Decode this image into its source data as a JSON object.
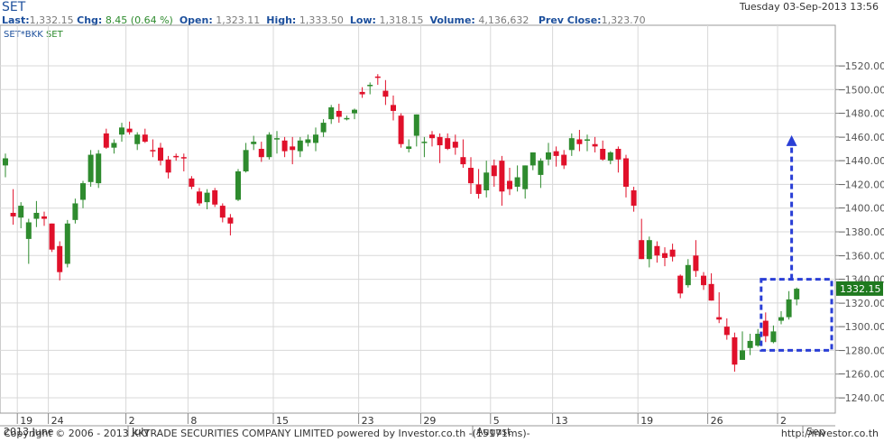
{
  "header": {
    "title": "SET",
    "datetime": "Tuesday 03-Sep-2013 13:56",
    "last_label": "Last:",
    "last": "1,332.15",
    "chg_label": "Chg:",
    "chg": "8.45 (0.64 %)",
    "open_label": "Open:",
    "open": "1,323.11",
    "high_label": "High:",
    "high": "1,333.50",
    "low_label": "Low:",
    "low": "1,318.15",
    "volume_label": "Volume:",
    "volume": "4,136,632",
    "prev_label": "Prev Close:",
    "prev": "1,323.70",
    "symbol_a": "SET*BKK",
    "symbol_b": "SET"
  },
  "footer": {
    "copyright": "Copyright © 2006 - 2013 KKTRADE SECURITIES COMPANY LIMITED powered by Investor.co.th -(15171ms)-",
    "url": "http://investor.co.th"
  },
  "colors": {
    "up": "#2e8b2e",
    "down": "#e0102a",
    "grid": "#d8d8d8",
    "annotation": "#2a3fd6",
    "label_bg": "#1f7a1f"
  },
  "chart_data": {
    "type": "candlestick",
    "y_ticks": [
      "1520.00",
      "1500.00",
      "1480.00",
      "1460.00",
      "1440.00",
      "1420.00",
      "1400.00",
      "1380.00",
      "1360.00",
      "1340.00",
      "1320.00",
      "1300.00",
      "1280.00",
      "1260.00",
      "1240.00"
    ],
    "ylim": [
      1230,
      1545
    ],
    "last_price_label": "1332.15",
    "x_day_labels": [
      "19",
      "24",
      "2",
      "8",
      "15",
      "23",
      "29",
      "5",
      "13",
      "19",
      "26",
      "2"
    ],
    "x_month_labels": [
      "2013 June",
      "July",
      "August",
      "Sep"
    ],
    "candles": [
      {
        "date": "2013-06-18",
        "open": 1436,
        "high": 1446,
        "low": 1426,
        "close": 1442
      },
      {
        "date": "2013-06-19",
        "open": 1396,
        "high": 1416,
        "low": 1386,
        "close": 1393
      },
      {
        "date": "2013-06-20",
        "open": 1392,
        "high": 1405,
        "low": 1383,
        "close": 1402
      },
      {
        "date": "2013-06-21",
        "open": 1374,
        "high": 1391,
        "low": 1353,
        "close": 1388
      },
      {
        "date": "2013-06-24",
        "open": 1391,
        "high": 1406,
        "low": 1384,
        "close": 1396
      },
      {
        "date": "2013-06-25",
        "open": 1393,
        "high": 1397,
        "low": 1385,
        "close": 1391
      },
      {
        "date": "2013-06-26",
        "open": 1387,
        "high": 1387,
        "low": 1363,
        "close": 1365
      },
      {
        "date": "2013-06-27",
        "open": 1368,
        "high": 1372,
        "low": 1339,
        "close": 1346
      },
      {
        "date": "2013-06-28",
        "open": 1353,
        "high": 1390,
        "low": 1350,
        "close": 1387
      },
      {
        "date": "2013-07-01",
        "open": 1390,
        "high": 1408,
        "low": 1387,
        "close": 1404
      },
      {
        "date": "2013-07-02",
        "open": 1407,
        "high": 1423,
        "low": 1400,
        "close": 1421
      },
      {
        "date": "2013-07-03",
        "open": 1422,
        "high": 1449,
        "low": 1418,
        "close": 1445
      },
      {
        "date": "2013-07-04",
        "open": 1421,
        "high": 1449,
        "low": 1417,
        "close": 1446
      },
      {
        "date": "2013-07-05",
        "open": 1463,
        "high": 1467,
        "low": 1450,
        "close": 1451
      },
      {
        "date": "2013-07-08",
        "open": 1451,
        "high": 1458,
        "low": 1446,
        "close": 1455
      },
      {
        "date": "2013-07-09",
        "open": 1462,
        "high": 1472,
        "low": 1456,
        "close": 1468
      },
      {
        "date": "2013-07-10",
        "open": 1467,
        "high": 1473,
        "low": 1462,
        "close": 1464
      },
      {
        "date": "2013-07-11",
        "open": 1454,
        "high": 1464,
        "low": 1449,
        "close": 1462
      },
      {
        "date": "2013-07-12",
        "open": 1462,
        "high": 1467,
        "low": 1455,
        "close": 1456
      },
      {
        "date": "2013-07-15",
        "open": 1449,
        "high": 1458,
        "low": 1443,
        "close": 1448
      },
      {
        "date": "2013-07-16",
        "open": 1451,
        "high": 1455,
        "low": 1436,
        "close": 1440
      },
      {
        "date": "2013-07-17",
        "open": 1441,
        "high": 1444,
        "low": 1425,
        "close": 1430
      },
      {
        "date": "2013-07-18",
        "open": 1444,
        "high": 1446,
        "low": 1440,
        "close": 1443
      },
      {
        "date": "2013-07-19",
        "open": 1443,
        "high": 1446,
        "low": 1431,
        "close": 1442
      },
      {
        "date": "2013-07-22",
        "open": 1425,
        "high": 1427,
        "low": 1416,
        "close": 1418
      },
      {
        "date": "2013-07-23",
        "open": 1414,
        "high": 1417,
        "low": 1402,
        "close": 1404
      },
      {
        "date": "2013-07-24",
        "open": 1405,
        "high": 1416,
        "low": 1399,
        "close": 1413
      },
      {
        "date": "2013-07-25",
        "open": 1415,
        "high": 1417,
        "low": 1401,
        "close": 1403
      },
      {
        "date": "2013-07-26",
        "open": 1402,
        "high": 1404,
        "low": 1388,
        "close": 1392
      },
      {
        "date": "2013-07-29",
        "open": 1392,
        "high": 1395,
        "low": 1377,
        "close": 1387
      },
      {
        "date": "2013-07-30",
        "open": 1407,
        "high": 1433,
        "low": 1406,
        "close": 1431
      },
      {
        "date": "2013-07-31",
        "open": 1431,
        "high": 1455,
        "low": 1430,
        "close": 1449
      },
      {
        "date": "2013-08-01",
        "open": 1454,
        "high": 1461,
        "low": 1449,
        "close": 1456
      },
      {
        "date": "2013-08-02",
        "open": 1450,
        "high": 1456,
        "low": 1439,
        "close": 1443
      },
      {
        "date": "2013-08-05",
        "open": 1443,
        "high": 1464,
        "low": 1441,
        "close": 1462
      },
      {
        "date": "2013-08-06",
        "open": 1458,
        "high": 1465,
        "low": 1446,
        "close": 1459
      },
      {
        "date": "2013-08-07",
        "open": 1457,
        "high": 1460,
        "low": 1443,
        "close": 1448
      },
      {
        "date": "2013-08-08",
        "open": 1452,
        "high": 1460,
        "low": 1437,
        "close": 1449
      },
      {
        "date": "2013-08-09",
        "open": 1448,
        "high": 1460,
        "low": 1443,
        "close": 1457
      },
      {
        "date": "2013-08-13",
        "open": 1455,
        "high": 1462,
        "low": 1452,
        "close": 1458
      },
      {
        "date": "2013-08-14",
        "open": 1455,
        "high": 1468,
        "low": 1448,
        "close": 1462
      },
      {
        "date": "2013-08-15",
        "open": 1464,
        "high": 1475,
        "low": 1460,
        "close": 1472
      },
      {
        "date": "2013-08-16",
        "open": 1475,
        "high": 1487,
        "low": 1471,
        "close": 1485
      },
      {
        "date": "2013-08-19",
        "open": 1482,
        "high": 1488,
        "low": 1472,
        "close": 1477
      },
      {
        "date": "2013-08-20",
        "open": 1475,
        "high": 1478,
        "low": 1474,
        "close": 1476
      },
      {
        "date": "2013-08-21",
        "open": 1480,
        "high": 1484,
        "low": 1475,
        "close": 1483
      },
      {
        "date": "2013-08-22",
        "open": 1498,
        "high": 1502,
        "low": 1493,
        "close": 1496
      },
      {
        "date": "2013-08-23",
        "open": 1503,
        "high": 1506,
        "low": 1496,
        "close": 1504
      },
      {
        "date": "2013-08-26",
        "open": 1511,
        "high": 1513,
        "low": 1504,
        "close": 1510
      },
      {
        "date": "2013-08-27",
        "open": 1499,
        "high": 1508,
        "low": 1487,
        "close": 1494
      },
      {
        "date": "2013-08-28",
        "open": 1487,
        "high": 1495,
        "low": 1474,
        "close": 1482
      },
      {
        "date": "2013-08-29",
        "open": 1478,
        "high": 1480,
        "low": 1451,
        "close": 1454
      },
      {
        "date": "2013-08-30",
        "open": 1450,
        "high": 1458,
        "low": 1447,
        "close": 1452
      }
    ],
    "candles_tail": [
      [
        1461,
        1479,
        1452,
        1479
      ],
      [
        1455,
        1460,
        1443,
        1456
      ],
      [
        1462,
        1465,
        1452,
        1459
      ],
      [
        1460,
        1463,
        1438,
        1453
      ],
      [
        1459,
        1463,
        1449,
        1450
      ],
      [
        1456,
        1462,
        1445,
        1451
      ],
      [
        1443,
        1458,
        1434,
        1437
      ],
      [
        1434,
        1443,
        1412,
        1421
      ],
      [
        1420,
        1433,
        1408,
        1412
      ],
      [
        1415,
        1440,
        1409,
        1430
      ],
      [
        1436,
        1441,
        1418,
        1427
      ],
      [
        1440,
        1444,
        1402,
        1414
      ],
      [
        1423,
        1434,
        1411,
        1416
      ],
      [
        1418,
        1436,
        1414,
        1426
      ],
      [
        1416,
        1436,
        1408,
        1436
      ],
      [
        1436,
        1447,
        1432,
        1447
      ],
      [
        1428,
        1442,
        1417,
        1440
      ],
      [
        1441,
        1455,
        1436,
        1447
      ],
      [
        1448,
        1452,
        1435,
        1444
      ],
      [
        1445,
        1449,
        1433,
        1436
      ],
      [
        1449,
        1463,
        1444,
        1459
      ],
      [
        1458,
        1466,
        1448,
        1454
      ],
      [
        1457,
        1462,
        1448,
        1458
      ],
      [
        1454,
        1460,
        1447,
        1452
      ],
      [
        1450,
        1457,
        1440,
        1441
      ],
      [
        1440,
        1448,
        1437,
        1447
      ],
      [
        1450,
        1452,
        1430,
        1441
      ],
      [
        1442,
        1445,
        1409,
        1418
      ],
      [
        1415,
        1418,
        1397,
        1402
      ],
      [
        1373,
        1391,
        1357,
        1357
      ],
      [
        1357,
        1376,
        1350,
        1373
      ],
      [
        1368,
        1372,
        1354,
        1360
      ],
      [
        1362,
        1367,
        1351,
        1358
      ],
      [
        1365,
        1370,
        1355,
        1359
      ],
      [
        1343,
        1344,
        1324,
        1328
      ],
      [
        1335,
        1357,
        1333,
        1352
      ],
      [
        1360,
        1373,
        1342,
        1347
      ],
      [
        1343,
        1346,
        1331,
        1335
      ],
      [
        1336,
        1345,
        1322,
        1322
      ],
      [
        1308,
        1329,
        1303,
        1306
      ],
      [
        1300,
        1307,
        1289,
        1293
      ],
      [
        1291,
        1295,
        1262,
        1268
      ],
      [
        1272,
        1296,
        1272,
        1280
      ],
      [
        1282,
        1294,
        1276,
        1288
      ],
      [
        1284,
        1298,
        1283,
        1294
      ],
      [
        1305,
        1312,
        1287,
        1292
      ],
      [
        1287,
        1301,
        1286,
        1296
      ],
      [
        1305,
        1313,
        1302,
        1308
      ],
      [
        1308,
        1330,
        1306,
        1323
      ],
      [
        1323,
        1333,
        1318,
        1332
      ]
    ]
  }
}
